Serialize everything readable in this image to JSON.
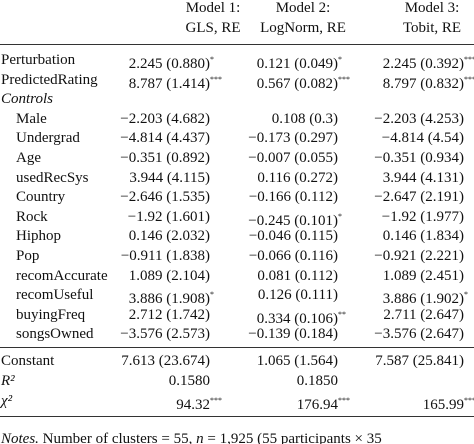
{
  "header": {
    "columns": [
      {
        "line1": "Model 1:",
        "line2": "GLS, RE"
      },
      {
        "line1": "Model 2:",
        "line2": "LogNorm, RE"
      },
      {
        "line1": "Model 3:",
        "line2": "Tobit, RE"
      }
    ]
  },
  "table": {
    "main_rows": [
      {
        "label": "Perturbation",
        "cells": [
          {
            "text": "2.245 (0.880)",
            "sig": "*"
          },
          {
            "text": "0.121 (0.049)",
            "sig": "*"
          },
          {
            "text": "2.245 (0.392)",
            "sig": "***"
          }
        ]
      },
      {
        "label": "PredictedRating",
        "cells": [
          {
            "text": "8.787 (1.414)",
            "sig": "***"
          },
          {
            "text": "0.567 (0.082)",
            "sig": "***"
          },
          {
            "text": "8.797 (0.832)",
            "sig": "***"
          }
        ]
      }
    ],
    "controls": {
      "label": "Controls",
      "rows": [
        {
          "label": "Male",
          "cells": [
            {
              "text": "−2.203 (4.682)"
            },
            {
              "text": "0.108 (0.3)"
            },
            {
              "text": "−2.203 (4.253)"
            }
          ]
        },
        {
          "label": "Undergrad",
          "cells": [
            {
              "text": "−4.814 (4.437)"
            },
            {
              "text": "−0.173 (0.297)"
            },
            {
              "text": "−4.814 (4.54)"
            }
          ]
        },
        {
          "label": "Age",
          "cells": [
            {
              "text": "−0.351 (0.892)"
            },
            {
              "text": "−0.007 (0.055)"
            },
            {
              "text": "−0.351 (0.934)"
            }
          ]
        },
        {
          "label": "usedRecSys",
          "cells": [
            {
              "text": "3.944 (4.115)"
            },
            {
              "text": "0.116 (0.272)"
            },
            {
              "text": "3.944 (4.131)"
            }
          ]
        },
        {
          "label": "Country",
          "cells": [
            {
              "text": "−2.646 (1.535)"
            },
            {
              "text": "−0.166 (0.112)"
            },
            {
              "text": "−2.647 (2.191)"
            }
          ]
        },
        {
          "label": "Rock",
          "cells": [
            {
              "text": "−1.92 (1.601)"
            },
            {
              "text": "−0.245 (0.101)",
              "sig": "*"
            },
            {
              "text": "−1.92 (1.977)"
            }
          ]
        },
        {
          "label": "Hiphop",
          "cells": [
            {
              "text": "0.146 (2.032)"
            },
            {
              "text": "−0.046 (0.115)"
            },
            {
              "text": "0.146 (1.834)"
            }
          ]
        },
        {
          "label": "Pop",
          "cells": [
            {
              "text": "−0.911 (1.838)"
            },
            {
              "text": "−0.066 (0.116)"
            },
            {
              "text": "−0.921 (2.221)"
            }
          ]
        },
        {
          "label": "recomAccurate",
          "cells": [
            {
              "text": "1.089 (2.104)"
            },
            {
              "text": "0.081 (0.112)"
            },
            {
              "text": "1.089 (2.451)"
            }
          ]
        },
        {
          "label": "recomUseful",
          "cells": [
            {
              "text": "3.886 (1.908)",
              "sig": "*"
            },
            {
              "text": "0.126 (0.111)"
            },
            {
              "text": "3.886 (1.902)",
              "sig": "*"
            }
          ]
        },
        {
          "label": "buyingFreq",
          "cells": [
            {
              "text": "2.712 (1.742)"
            },
            {
              "text": "0.334 (0.106)",
              "sig": "**"
            },
            {
              "text": "2.711 (2.647)"
            }
          ]
        },
        {
          "label": "songsOwned",
          "cells": [
            {
              "text": "−3.576 (2.573)"
            },
            {
              "text": "−0.139 (0.184)"
            },
            {
              "text": "−3.576 (2.647)"
            }
          ]
        }
      ]
    },
    "summary_rows": [
      {
        "label": "Constant",
        "cells": [
          {
            "text": "7.613 (23.674)"
          },
          {
            "text": "1.065 (1.564)"
          },
          {
            "text": "7.587 (25.841)"
          }
        ]
      },
      {
        "label": "R²",
        "italic": true,
        "cells": [
          {
            "text": "0.1580"
          },
          {
            "text": "0.1850"
          }
        ]
      },
      {
        "label": "χ²",
        "italic": true,
        "cells": [
          {
            "text": "94.32",
            "sig": "***"
          },
          {
            "text": "176.94",
            "sig": "***"
          },
          {
            "text": "165.99",
            "sig": "***"
          }
        ]
      }
    ]
  },
  "notes": {
    "label": "Notes.",
    "text": " Number of clusters = 55, ",
    "n": "n",
    "rest": " = 1,925 (55 participants × 35"
  }
}
